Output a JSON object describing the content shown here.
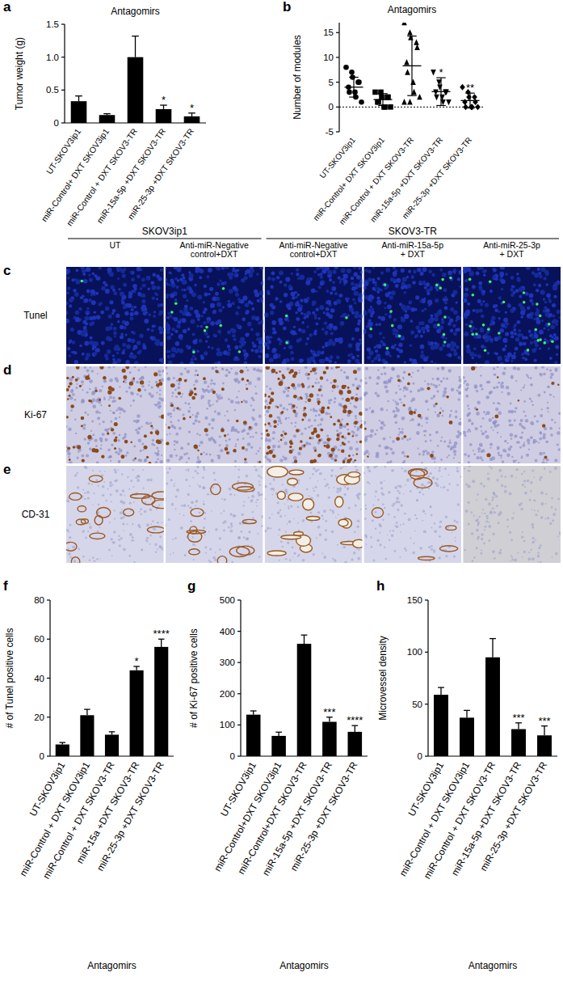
{
  "chart_data": [
    {
      "type": "bar",
      "panel": "a",
      "title": "Antagomirs",
      "y_label": "Tumor weight (g)",
      "categories": [
        "UT-SKOV3ip1",
        "miR-Control+ DXT SKOV3ip1",
        "miR-Control + DXT SKOV3-TR",
        "miR-15a-5p +DXT SKOV3-TR",
        "miR-25-3p +DXT SKOV3-TR"
      ],
      "values": [
        0.33,
        0.12,
        1.0,
        0.21,
        0.1
      ],
      "errors": [
        0.08,
        0.02,
        0.32,
        0.06,
        0.05
      ],
      "significance": [
        null,
        null,
        null,
        "*",
        "*"
      ],
      "color": "#000000",
      "ylim": [
        0,
        1.5
      ],
      "yticks": [
        0,
        0.5,
        {
          "value": 1,
          "label": "1.0"
        },
        1.5
      ]
    },
    {
      "type": "dot",
      "panel": "b",
      "title": "Antagomirs",
      "y_label": "Number of modules",
      "series": [
        {
          "name": "UT-SKOV3ip1",
          "marker": "circle",
          "values": [
            8,
            7,
            6,
            5,
            5,
            4,
            3,
            3,
            2,
            1
          ],
          "mean": 4,
          "error": 2
        },
        {
          "name": "miR-Control+ DXT SKOV3ip1",
          "marker": "square",
          "values": [
            3,
            3,
            2,
            2,
            2,
            1,
            1,
            0,
            0,
            0
          ],
          "mean": 1.5,
          "error": 1.2
        },
        {
          "name": "miR-Control + DXT SKOV3-TR",
          "marker": "triangle",
          "values": [
            17,
            15,
            14,
            13,
            12,
            9,
            7,
            5,
            3,
            2,
            1,
            1
          ],
          "mean": 8.3,
          "error": 6
        },
        {
          "name": "miR-15a-5p +DXT SKOV3-TR",
          "marker": "triangle-down",
          "values": [
            7,
            5,
            4,
            3,
            3,
            3,
            2,
            2,
            1,
            1
          ],
          "mean": 3.1,
          "error": 2.8
        },
        {
          "name": "miR-25-3p +DXT SKOV3-TR",
          "marker": "diamond",
          "values": [
            4,
            3,
            2,
            2,
            1,
            1,
            0,
            0,
            0,
            0
          ],
          "mean": 1.3,
          "error": 1.5
        }
      ],
      "significance": [
        null,
        null,
        null,
        "*",
        "**"
      ],
      "reference_line": 0,
      "color": "#000000",
      "ylim": [
        -5,
        17
      ],
      "yticks": [
        -5,
        0,
        5,
        10,
        15
      ]
    },
    {
      "type": "bar",
      "panel": "f",
      "x_label": "Antagomirs",
      "y_label": "# of Tunel positive cells",
      "categories": [
        "UT-SKOV3ip1",
        "miR-Control + DXT SKOV3ip1",
        "miR-Control + DXT SKOV3-TR",
        "miR-15a +DXT SKOV3-TR",
        "miR-25-3p +DXT SKOV3-TR"
      ],
      "values": [
        6,
        21,
        11,
        44,
        56
      ],
      "errors": [
        1,
        3,
        1.5,
        2,
        4
      ],
      "significance": [
        null,
        null,
        null,
        "*",
        "****"
      ],
      "color": "#000000",
      "ylim": [
        0,
        80
      ],
      "yticks": [
        0,
        20,
        40,
        60,
        80
      ]
    },
    {
      "type": "bar",
      "panel": "g",
      "x_label": "Antagomirs",
      "y_label": "# of Ki-67 positive cells",
      "categories": [
        "UT-SKOV3ip1",
        "miR-Control+DXT SKOV3ip1",
        "miR-Control+DXT SKOV3-TR",
        "miR-15a-5p +DXT SKOV3-TR",
        "miR-25-3p +DXT SKOV3-TR"
      ],
      "values": [
        133,
        65,
        360,
        110,
        78
      ],
      "errors": [
        12,
        12,
        28,
        15,
        20
      ],
      "significance": [
        null,
        null,
        null,
        "***",
        "****"
      ],
      "color": "#000000",
      "ylim": [
        0,
        500
      ],
      "yticks": [
        0,
        100,
        200,
        300,
        400,
        500
      ]
    },
    {
      "type": "bar",
      "panel": "h",
      "x_label": "Antagomirs",
      "y_label": "Microvessel density",
      "categories": [
        "UT-SKOV3ip1",
        "miR-Control + DXT SKOV3ip1",
        "miR-Control + DXT SKOV3-TR",
        "miR-15a-5p +DXT SKOV3-TR",
        "miR-25-3p +DXT SKOV3-TR"
      ],
      "values": [
        59,
        37,
        95,
        26,
        20
      ],
      "errors": [
        7,
        7,
        18,
        6,
        9
      ],
      "significance": [
        null,
        null,
        null,
        "***",
        "***"
      ],
      "color": "#000000",
      "ylim": [
        0,
        150
      ],
      "yticks": [
        0,
        50,
        100,
        150
      ]
    }
  ],
  "images": {
    "panel_labels": [
      "c",
      "d",
      "e"
    ],
    "groups": [
      "SKOV3ip1",
      "SKOV3-TR"
    ],
    "columns": [
      [
        "UT"
      ],
      [
        "Anti-miR-Negative",
        "control+DXT"
      ],
      [
        "Anti-miR-Negative",
        "control+DXT"
      ],
      [
        "Anti-miR-15a-5p",
        "+ DXT"
      ],
      [
        "Anti-miR-25-3p",
        "+ DXT"
      ]
    ],
    "rows": [
      "Tunel",
      "Ki-67",
      "CD-31"
    ]
  }
}
